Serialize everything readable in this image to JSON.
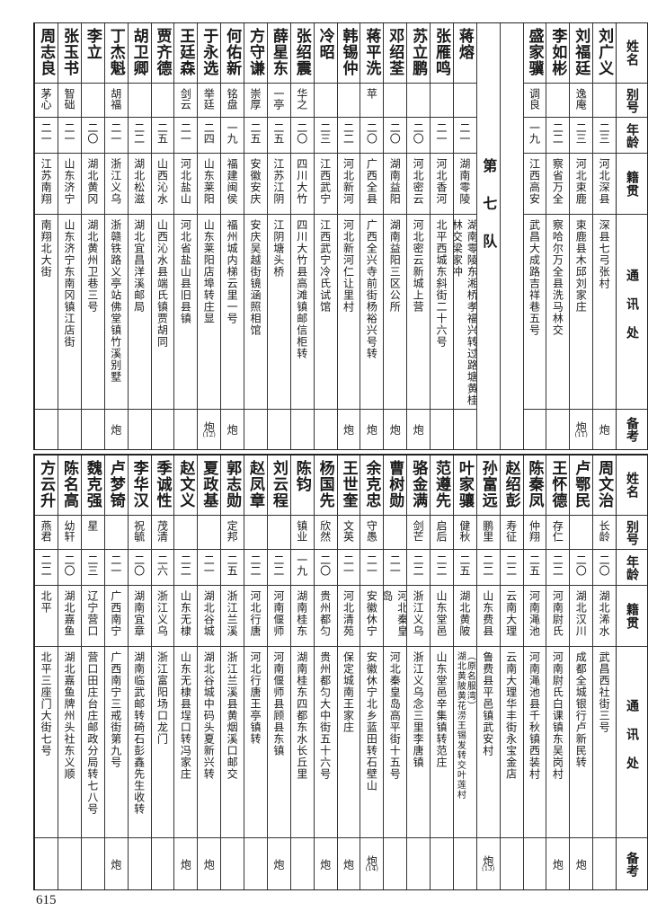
{
  "header": {
    "name": "姓名",
    "alias": "别号",
    "age": "年龄",
    "origin": "籍贯",
    "address": "通讯处",
    "note": "备考"
  },
  "top": [
    {
      "name": "刘广义",
      "alias": "",
      "age": "二三",
      "origin": "河北深县",
      "address": "深县七弓张村",
      "note": "炮",
      "note_num": ""
    },
    {
      "name": "刘福廷",
      "alias": "逸庵",
      "age": "二三",
      "origin": "河北束鹿",
      "address": "束鹿县木邱刘家庄",
      "note": "炮",
      "note_num": "(11)"
    },
    {
      "name": "李如彬",
      "alias": "",
      "age": "二二",
      "origin": "察省万全",
      "address": "察哈尔万全县洗马林交",
      "note": "",
      "note_num": ""
    },
    {
      "name": "盛家骥",
      "alias": "调良",
      "age": "一九",
      "origin": "江西高安",
      "address": "武昌大成路吉祥巷五号",
      "note": "",
      "note_num": ""
    },
    {
      "blank": true
    },
    {
      "section": "第七队"
    },
    {
      "name": "蒋熔",
      "alias": "",
      "age": "二一",
      "origin": "湖南零陵",
      "address": "湖南零陵东湘桥孝福兴转过路塘黄桂林交梁家冲",
      "note": "",
      "note_num": ""
    },
    {
      "name": "张雁鸣",
      "alias": "",
      "age": "二一",
      "origin": "河北香河",
      "address": "北平西城东斜街二十六号",
      "note": "",
      "note_num": ""
    },
    {
      "name": "苏立鹏",
      "alias": "",
      "age": "二〇",
      "origin": "河北密云",
      "address": "河北密云新城上营",
      "note": "炮",
      "note_num": ""
    },
    {
      "name": "邓绍荃",
      "alias": "",
      "age": "二〇",
      "origin": "湖南益阳",
      "address": "湖南益阳三区公所",
      "note": "炮",
      "note_num": ""
    },
    {
      "name": "蒋平洗",
      "alias": "苹",
      "age": "二〇",
      "origin": "广西全县",
      "address": "广西全兴寺前街杨裕兴号转",
      "note": "炮",
      "note_num": ""
    },
    {
      "name": "韩锡仲",
      "alias": "",
      "age": "二二",
      "origin": "河北新河",
      "address": "河北新河仁让里村",
      "note": "炮",
      "note_num": ""
    },
    {
      "name": "冷昭",
      "alias": "",
      "age": "二三",
      "origin": "江西武宁",
      "address": "江西武宁冷氏试馆",
      "note": "",
      "note_num": ""
    },
    {
      "name": "张绍震",
      "alias": "华之",
      "age": "二〇",
      "origin": "四川大竹",
      "address": "四川大竹县高滩镇邮信柜转",
      "note": "",
      "note_num": ""
    },
    {
      "name": "薛星东",
      "alias": "一亭",
      "age": "二五",
      "origin": "江苏江阴",
      "address": "江阴塘头桥",
      "note": "",
      "note_num": ""
    },
    {
      "name": "方守谦",
      "alias": "崇厚",
      "age": "二五",
      "origin": "安徽安庆",
      "address": "安庆吴越街镜涵照相馆",
      "note": "",
      "note_num": ""
    },
    {
      "name": "何佑新",
      "alias": "铭盘",
      "age": "一九",
      "origin": "福建闽侯",
      "address": "福州城内梯云里一号",
      "note": "炮",
      "note_num": ""
    },
    {
      "name": "于永选",
      "alias": "举廷",
      "age": "二四",
      "origin": "山东莱阳",
      "address": "山东莱阳店埠转庄显",
      "note": "炮",
      "note_num": "(12)"
    },
    {
      "name": "王廷森",
      "alias": "剑云",
      "age": "二一",
      "origin": "河北盐山",
      "address": "河北省盐山县旧县镇",
      "note": "",
      "note_num": ""
    },
    {
      "name": "贾齐德",
      "alias": "",
      "age": "二五",
      "origin": "山西沁水",
      "address": "山西沁水县端氏镇贾胡同",
      "note": "",
      "note_num": ""
    },
    {
      "name": "胡卫卿",
      "alias": "",
      "age": "二二",
      "origin": "湖北松滋",
      "address": "湖北宜昌洋溪邮局",
      "note": "",
      "note_num": ""
    },
    {
      "name": "丁杰魁",
      "alias": "胡福",
      "age": "二一",
      "origin": "浙江义乌",
      "address": "浙赣铁路义亭站佛堂镇竹溪别墅",
      "note": "炮",
      "note_num": ""
    },
    {
      "name": "李立",
      "alias": "",
      "age": "二〇",
      "origin": "湖北黄冈",
      "address": "湖北黄州卫巷三号",
      "note": "",
      "note_num": ""
    },
    {
      "name": "张玉书",
      "alias": "智础",
      "age": "二一",
      "origin": "山东济宁",
      "address": "山东济宁东南冈镇江店街",
      "note": "",
      "note_num": ""
    },
    {
      "name": "周志良",
      "alias": "茅心",
      "age": "二一",
      "origin": "江苏南翔",
      "address": "南翔北大街",
      "note": "",
      "note_num": ""
    }
  ],
  "bottom": [
    {
      "name": "周文治",
      "alias": "长龄",
      "age": "二〇",
      "origin": "湖北浠水",
      "address": "武昌西社街三号",
      "note": "",
      "note_num": ""
    },
    {
      "name": "卢鄂民",
      "alias": "",
      "age": "二〇",
      "origin": "湖北汉川",
      "address": "成都全城银行卢新民转",
      "note": "炮",
      "note_num": ""
    },
    {
      "name": "王怀德",
      "alias": "存仁",
      "age": "二二",
      "origin": "河南尉氏",
      "address": "河南尉氏白课镇东吴岗村",
      "note": "炮",
      "note_num": ""
    },
    {
      "name": "陈秦凤",
      "alias": "仲翔",
      "age": "二五",
      "origin": "河南渑池",
      "address": "河南渑池县千秋镇西装村",
      "note": "",
      "note_num": ""
    },
    {
      "name": "赵绍彭",
      "alias": "寿征",
      "age": "二二",
      "origin": "云南大理",
      "address": "云南大理华丰街永宝金店",
      "note": "",
      "note_num": ""
    },
    {
      "name": "孙富远",
      "alias": "鹏里",
      "age": "二二",
      "origin": "山东费县",
      "address": "鲁费县平邑镇武安村",
      "note": "炮",
      "note_num": "(13)"
    },
    {
      "name": "叶家骧",
      "alias": "健秋",
      "age": "二五",
      "origin": "湖北黄陂",
      "address": "湖北黄陂黄花涝王锡发转交叶莲村",
      "address2": "（原名服湾）",
      "note": "",
      "note_num": ""
    },
    {
      "name": "范遵先",
      "alias": "启后",
      "age": "二二",
      "origin": "山东堂邑",
      "address": "山东堂邑辛集镇转范庄",
      "note": "",
      "note_num": ""
    },
    {
      "name": "骆金满",
      "alias": "剑芒",
      "age": "二二",
      "origin": "浙江义乌",
      "address": "浙江义乌念三里李唐镇",
      "note": "",
      "note_num": ""
    },
    {
      "name": "曹树勋",
      "alias": "",
      "age": "二一",
      "origin": "河北秦皇岛",
      "address": "河北秦皇岛高平街十五号",
      "note": "",
      "note_num": ""
    },
    {
      "name": "余克忠",
      "alias": "守愚",
      "age": "二一",
      "origin": "安徽休宁",
      "address": "安徽休宁北乡蓝田转石壁山",
      "note": "炮",
      "note_num": "(14)"
    },
    {
      "name": "王世奎",
      "alias": "文英",
      "age": "二一",
      "origin": "河北清苑",
      "address": "保定城南王家庄",
      "note": "炮",
      "note_num": ""
    },
    {
      "name": "杨国先",
      "alias": "欣然",
      "age": "二〇",
      "origin": "贵州都匀",
      "address": "贵州都匀大中街五十六号",
      "note": "炮",
      "note_num": ""
    },
    {
      "name": "陈钧",
      "alias": "镇业",
      "age": "一九",
      "origin": "湖南桂东",
      "address": "湖南桂东四都东水长丘里",
      "note": "",
      "note_num": ""
    },
    {
      "name": "刘云程",
      "alias": "",
      "age": "二二",
      "origin": "河南偃师",
      "address": "河南偃师县顾县东镇",
      "note": "炮",
      "note_num": ""
    },
    {
      "name": "赵凤章",
      "alias": "",
      "age": "二二",
      "origin": "河北行唐",
      "address": "河北行唐王亭镇转",
      "note": "",
      "note_num": ""
    },
    {
      "name": "郭志勋",
      "alias": "定邦",
      "age": "二五",
      "origin": "浙江兰溪",
      "address": "浙江兰溪县黄烟溪口邮交",
      "note": "",
      "note_num": ""
    },
    {
      "name": "夏政基",
      "alias": "",
      "age": "二一",
      "origin": "湖北谷城",
      "address": "湖北谷城中码头夏新兴转",
      "note": "炮",
      "note_num": ""
    },
    {
      "name": "赵文义",
      "alias": "",
      "age": "二二",
      "origin": "山东无棣",
      "address": "山东无棣县埕口转冯家庄",
      "note": "炮",
      "note_num": ""
    },
    {
      "name": "季诚性",
      "alias": "茂清",
      "age": "二六",
      "origin": "浙江义乌",
      "address": "浙江富阳场口龙门",
      "note": "",
      "note_num": ""
    },
    {
      "name": "李华汉",
      "alias": "祝毓",
      "age": "二〇",
      "origin": "湖南宜章",
      "address": "湖南临武邮转碕石彭鑫先生收转",
      "note": "",
      "note_num": ""
    },
    {
      "name": "卢梦锜",
      "alias": "",
      "age": "二一",
      "origin": "广西南宁",
      "address": "广西南宁三戒街第九号",
      "note": "炮",
      "note_num": ""
    },
    {
      "name": "魏克强",
      "alias": "星",
      "age": "二三",
      "origin": "辽宁营口",
      "address": "营口田庄台庄邮政分局转七八号",
      "note": "",
      "note_num": ""
    },
    {
      "name": "陈名高",
      "alias": "幼轩",
      "age": "二〇",
      "origin": "湖北嘉鱼",
      "address": "湖北嘉鱼牌州头社东义顺",
      "note": "",
      "note_num": ""
    },
    {
      "name": "方云升",
      "alias": "燕君",
      "age": "二二",
      "origin": "北平",
      "address": "北平三座门大街七号",
      "note": "",
      "note_num": ""
    }
  ],
  "page_number": "615"
}
